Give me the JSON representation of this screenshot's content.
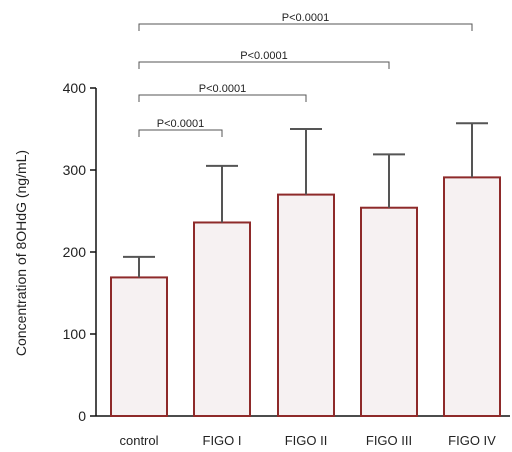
{
  "colors": {
    "bar_fill": "#f6f1f2",
    "bar_stroke": "#8e2a2a",
    "error_bar": "#555555",
    "axis": "#111111",
    "bracket": "#555555"
  },
  "chart_data": {
    "type": "bar",
    "ylabel": "Concentration of 8OHdG (ng/mL)",
    "xlabel": "",
    "ylim": [
      0,
      400
    ],
    "yticks": [
      0,
      100,
      200,
      300,
      400
    ],
    "grid": false,
    "categories": [
      "control",
      "FIGO I",
      "FIGO II",
      "FIGO III",
      "FIGO IV"
    ],
    "values": [
      169,
      236,
      270,
      254,
      291
    ],
    "error_upper": [
      194,
      305,
      350,
      319,
      357
    ],
    "comparisons": [
      {
        "from": "control",
        "to": "FIGO I",
        "label": "P<0.0001"
      },
      {
        "from": "control",
        "to": "FIGO II",
        "label": "P<0.0001"
      },
      {
        "from": "control",
        "to": "FIGO III",
        "label": "P<0.0001"
      },
      {
        "from": "control",
        "to": "FIGO IV",
        "label": "P<0.0001"
      }
    ]
  }
}
